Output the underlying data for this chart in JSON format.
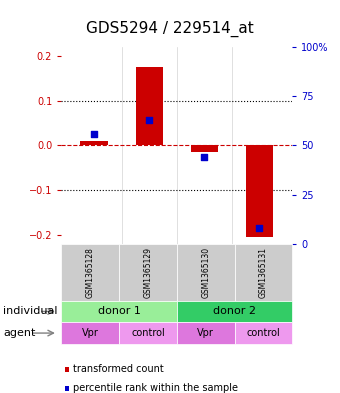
{
  "title": "GDS5294 / 229514_at",
  "samples": [
    "GSM1365128",
    "GSM1365129",
    "GSM1365130",
    "GSM1365131"
  ],
  "bar_values": [
    0.01,
    0.175,
    -0.015,
    -0.205
  ],
  "percentile_values": [
    0.56,
    0.63,
    0.44,
    0.08
  ],
  "ylim_left": [
    -0.22,
    0.22
  ],
  "ylim_right": [
    0,
    1.0
  ],
  "yticks_left": [
    -0.2,
    -0.1,
    0.0,
    0.1,
    0.2
  ],
  "yticks_right": [
    0,
    0.25,
    0.5,
    0.75,
    1.0
  ],
  "dotted_lines": [
    -0.1,
    0.1
  ],
  "bar_color": "#cc0000",
  "percentile_color": "#0000cc",
  "bar_width": 0.5,
  "donor_row": [
    {
      "label": "donor 1",
      "span": [
        0,
        2
      ],
      "color": "#99ee99"
    },
    {
      "label": "donor 2",
      "span": [
        2,
        4
      ],
      "color": "#33cc66"
    }
  ],
  "agent_row": [
    {
      "label": "Vpr",
      "color": "#dd77dd"
    },
    {
      "label": "control",
      "color": "#ee99ee"
    },
    {
      "label": "Vpr",
      "color": "#dd77dd"
    },
    {
      "label": "control",
      "color": "#ee99ee"
    }
  ],
  "sample_box_color": "#cccccc",
  "individual_label": "individual",
  "agent_label": "agent",
  "legend_bar_label": "transformed count",
  "legend_pct_label": "percentile rank within the sample",
  "title_fontsize": 11,
  "label_fontsize": 8,
  "tick_fontsize": 7
}
